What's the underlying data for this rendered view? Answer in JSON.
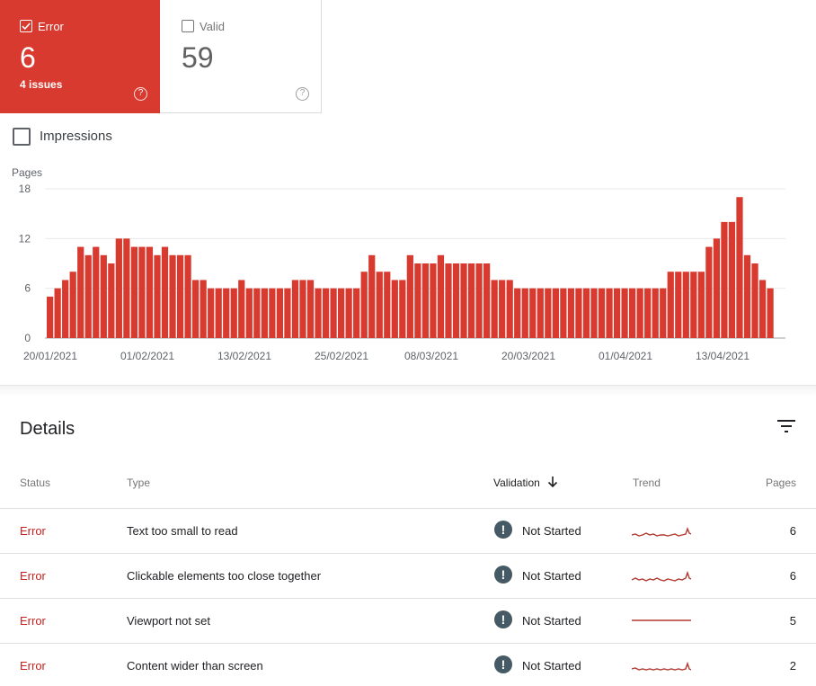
{
  "cards": {
    "error": {
      "label": "Error",
      "count": "6",
      "sub": "4 issues",
      "color": "#d93a2f",
      "help": "?"
    },
    "valid": {
      "label": "Valid",
      "count": "59",
      "help": "?"
    }
  },
  "impressions": {
    "label": "Impressions"
  },
  "chart_data": {
    "type": "bar",
    "ylabel": "Pages",
    "ylim": [
      0,
      18
    ],
    "yticks": [
      "18",
      "12",
      "6",
      "0"
    ],
    "bar_color": "#d93a2f",
    "grid": true,
    "xtick_labels": [
      "20/01/2021",
      "01/02/2021",
      "13/02/2021",
      "25/02/2021",
      "08/03/2021",
      "20/03/2021",
      "01/04/2021",
      "13/04/2021"
    ],
    "values": [
      5,
      6,
      7,
      8,
      11,
      10,
      11,
      10,
      9,
      12,
      12,
      11,
      11,
      11,
      10,
      11,
      10,
      10,
      10,
      7,
      7,
      6,
      6,
      6,
      6,
      7,
      6,
      6,
      6,
      6,
      6,
      6,
      7,
      7,
      7,
      6,
      6,
      6,
      6,
      6,
      6,
      8,
      10,
      8,
      8,
      7,
      7,
      10,
      9,
      9,
      9,
      10,
      9,
      9,
      9,
      9,
      9,
      9,
      7,
      7,
      7,
      6,
      6,
      6,
      6,
      6,
      6,
      6,
      6,
      6,
      6,
      6,
      6,
      6,
      6,
      6,
      6,
      6,
      6,
      6,
      6,
      8,
      8,
      8,
      8,
      8,
      11,
      12,
      14,
      14,
      17,
      10,
      9,
      7,
      6
    ]
  },
  "details": {
    "title": "Details",
    "columns": {
      "status": "Status",
      "type": "Type",
      "validation": "Validation",
      "trend": "Trend",
      "pages": "Pages"
    },
    "rows": [
      {
        "status": "Error",
        "type": "Text too small to read",
        "validation": "Not Started",
        "validation_icon": "!",
        "pages": "6"
      },
      {
        "status": "Error",
        "type": "Clickable elements too close together",
        "validation": "Not Started",
        "validation_icon": "!",
        "pages": "6"
      },
      {
        "status": "Error",
        "type": "Viewport not set",
        "validation": "Not Started",
        "validation_icon": "!",
        "pages": "5"
      },
      {
        "status": "Error",
        "type": "Content wider than screen",
        "validation": "Not Started",
        "validation_icon": "!",
        "pages": "2"
      }
    ]
  }
}
